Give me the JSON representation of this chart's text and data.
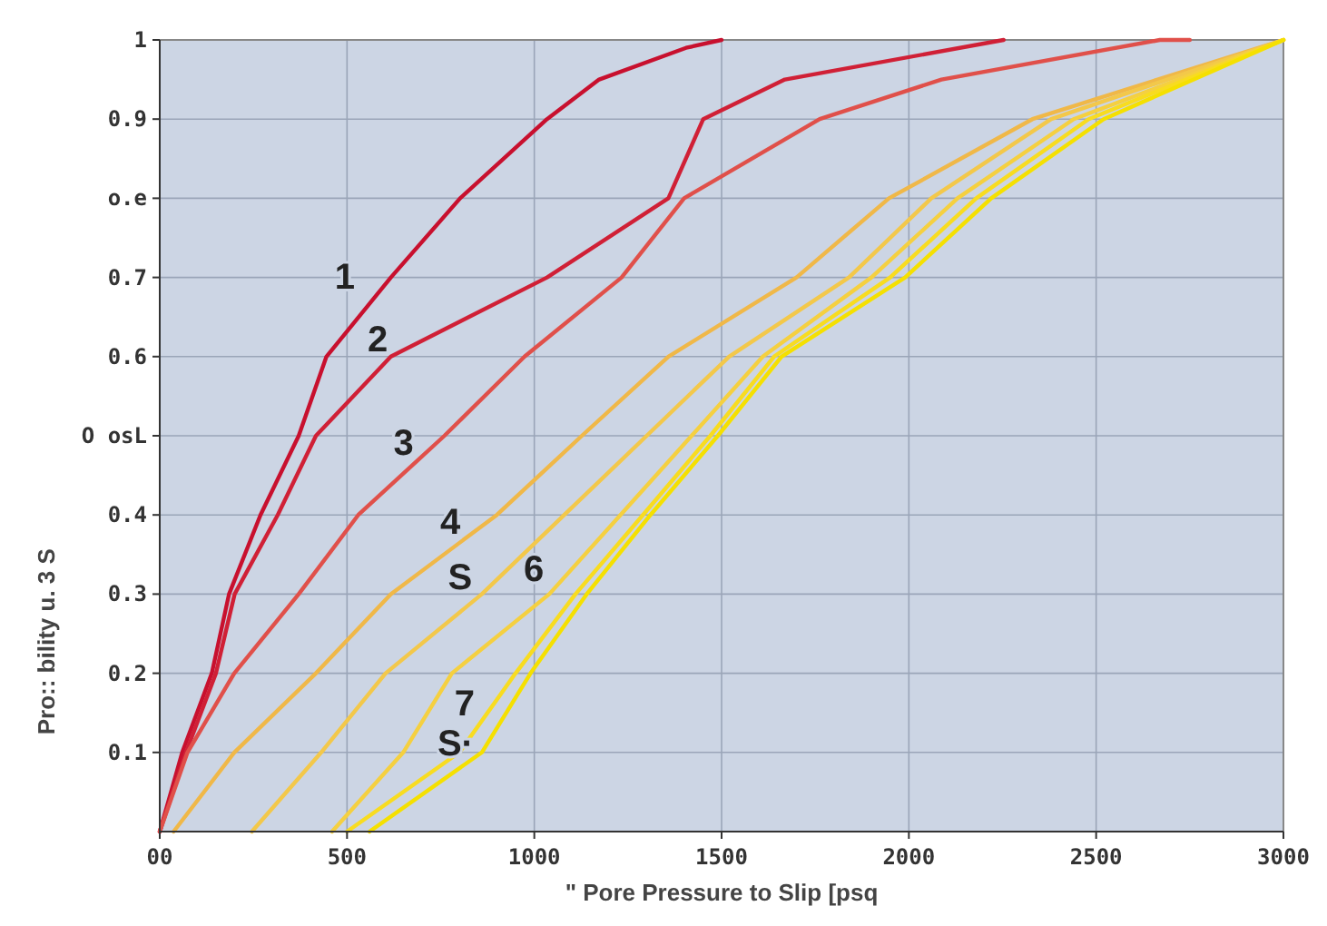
{
  "chart_data": {
    "type": "line",
    "xlabel": "\" Pore Pressure to Slip [psq",
    "ylabel": "Pro:: bility u. 3 S",
    "xlim": [
      0,
      3000
    ],
    "ylim": [
      0,
      1
    ],
    "xticks": [
      {
        "value": 0,
        "label": "00"
      },
      500,
      1000,
      1500,
      2000,
      2500,
      3000
    ],
    "yticks": [
      0.1,
      0.2,
      0.3,
      0.4,
      {
        "value": 0.5,
        "label": "O osL"
      },
      0.6,
      0.7,
      {
        "value": 0.8,
        "label": "o.e"
      },
      0.9,
      1
    ],
    "grid": true,
    "marker": "none",
    "line_style": "solid",
    "series": [
      {
        "color": "#c8102e",
        "x": [
          0,
          60,
          139,
          185,
          269,
          371,
          445,
          617,
          802,
          1034,
          1173,
          1405,
          1500
        ],
        "values": [
          0,
          0.1,
          0.2,
          0.3,
          0.4,
          0.5,
          0.6,
          0.7,
          0.8,
          0.9,
          0.95,
          0.99,
          1
        ]
      },
      {
        "color": "#d02036",
        "x": [
          0,
          70,
          150,
          200,
          315,
          417,
          617,
          1034,
          1358,
          1451,
          1669,
          2253
        ],
        "values": [
          0,
          0.1,
          0.2,
          0.3,
          0.4,
          0.5,
          0.6,
          0.7,
          0.8,
          0.9,
          0.95,
          1
        ]
      },
      {
        "color": "#e0504a",
        "x": [
          0,
          74,
          199,
          371,
          530,
          760,
          974,
          1233,
          1400,
          1762,
          2087,
          2670,
          2750
        ],
        "values": [
          0,
          0.1,
          0.2,
          0.3,
          0.4,
          0.5,
          0.6,
          0.7,
          0.8,
          0.9,
          0.95,
          1,
          1
        ]
      },
      {
        "color": "#f0b848",
        "x": [
          37,
          199,
          417,
          617,
          900,
          1127,
          1358,
          1700,
          1947,
          2330,
          3000
        ],
        "values": [
          0,
          0.1,
          0.2,
          0.3,
          0.4,
          0.5,
          0.6,
          0.7,
          0.8,
          0.9,
          1
        ]
      },
      {
        "color": "#f3c84a",
        "x": [
          246,
          431,
          603,
          860,
          1080,
          1300,
          1520,
          1840,
          2060,
          2380,
          3000
        ],
        "values": [
          0,
          0.1,
          0.2,
          0.3,
          0.4,
          0.5,
          0.6,
          0.7,
          0.8,
          0.9,
          1
        ]
      },
      {
        "color": "#f5d040",
        "x": [
          460,
          650,
          780,
          1040,
          1230,
          1420,
          1610,
          1900,
          2130,
          2440,
          3000
        ],
        "values": [
          0,
          0.1,
          0.2,
          0.3,
          0.4,
          0.5,
          0.6,
          0.7,
          0.8,
          0.9,
          1
        ]
      },
      {
        "color": "#f8dc20",
        "x": [
          500,
          800,
          950,
          1110,
          1290,
          1470,
          1640,
          1950,
          2180,
          2480,
          3000
        ],
        "values": [
          0,
          0.1,
          0.2,
          0.3,
          0.4,
          0.5,
          0.6,
          0.7,
          0.8,
          0.9,
          1
        ]
      },
      {
        "color": "#f5e000",
        "x": [
          560,
          860,
          990,
          1140,
          1310,
          1490,
          1660,
          1990,
          2220,
          2520,
          3000
        ],
        "values": [
          0,
          0.1,
          0.2,
          0.3,
          0.4,
          0.5,
          0.6,
          0.7,
          0.8,
          0.9,
          1
        ]
      }
    ],
    "annotations": [
      {
        "text": "1",
        "x": 552,
        "y": 0.68
      },
      {
        "text": "2",
        "x": 640,
        "y": 0.6
      },
      {
        "text": "3",
        "x": 709,
        "y": 0.47
      },
      {
        "text": "4",
        "x": 834,
        "y": 0.37
      },
      {
        "text": "S",
        "x": 860,
        "y": 0.3
      },
      {
        "text": "6",
        "x": 1057,
        "y": 0.31
      },
      {
        "text": "7",
        "x": 872,
        "y": 0.14
      },
      {
        "text": "S·",
        "x": 848,
        "y": 0.09
      }
    ]
  }
}
